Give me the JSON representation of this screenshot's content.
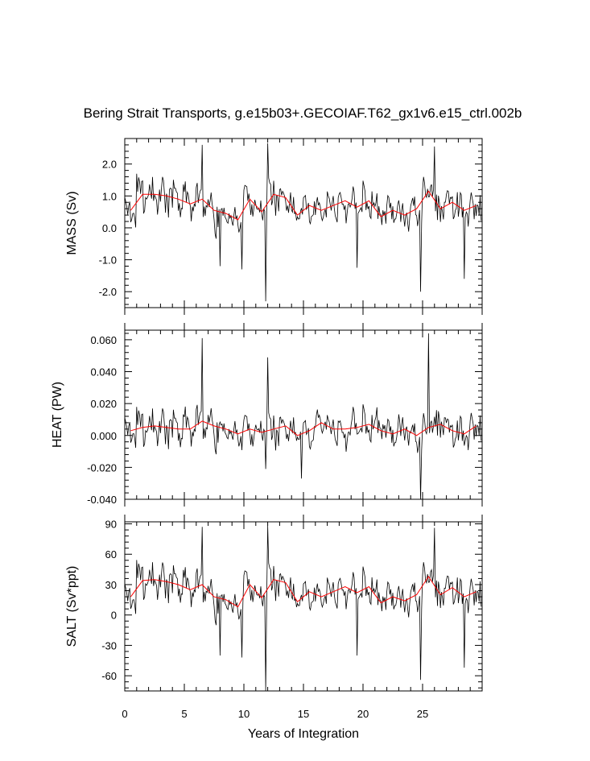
{
  "chart_data": {
    "type": "line",
    "title": "Bering Strait Transports, g.e15b03+.GECOIAF.T62_gx1v6.e15_ctrl.002b",
    "xlabel": "Years of Integration",
    "xlim": [
      0,
      30
    ],
    "x_ticks": [
      0,
      5,
      10,
      15,
      20,
      25
    ],
    "x_tick_labels": [
      "0",
      "5",
      "10",
      "15",
      "20",
      "25"
    ],
    "colors": {
      "monthly": "#000000",
      "annual": "#ff0000"
    },
    "panels": [
      {
        "id": "mass",
        "ylabel": "MASS (Sv)",
        "ylim": [
          -2.5,
          2.8
        ],
        "y_ticks": [
          2.0,
          1.0,
          0.0,
          -1.0,
          -2.0
        ],
        "y_tick_labels": [
          "2.0",
          "1.0",
          "0.0",
          "-1.0",
          "-2.0"
        ],
        "annual_mean": [
          0.55,
          1.05,
          1.05,
          1.0,
          0.9,
          0.75,
          0.9,
          0.55,
          0.45,
          0.25,
          0.9,
          0.5,
          1.05,
          0.95,
          0.4,
          0.7,
          0.55,
          0.7,
          0.85,
          0.65,
          0.85,
          0.35,
          0.55,
          0.4,
          0.6,
          1.15,
          0.6,
          0.8,
          0.55,
          0.7
        ],
        "spikes": [
          [
            6.5,
            2.6
          ],
          [
            12.0,
            2.65
          ],
          [
            26.0,
            2.55
          ],
          [
            11.8,
            -2.3
          ],
          [
            24.8,
            -2.0
          ],
          [
            28.5,
            -1.6
          ],
          [
            8.0,
            -1.2
          ],
          [
            9.8,
            -1.3
          ],
          [
            19.5,
            -1.25
          ]
        ]
      },
      {
        "id": "heat",
        "ylabel": "HEAT (PW)",
        "ylim": [
          -0.04,
          0.066
        ],
        "y_ticks": [
          0.06,
          0.04,
          0.02,
          0.0,
          -0.02,
          -0.04
        ],
        "y_tick_labels": [
          "0.060",
          "0.040",
          "0.020",
          "0.000",
          "-0.020",
          "-0.040"
        ],
        "annual_mean": [
          0.003,
          0.005,
          0.006,
          0.005,
          0.004,
          0.004,
          0.009,
          0.006,
          0.004,
          0.001,
          0.004,
          0.002,
          0.004,
          0.006,
          0.0,
          0.003,
          0.008,
          0.004,
          0.004,
          0.005,
          0.007,
          0.003,
          0.001,
          0.004,
          0.0,
          0.005,
          0.007,
          0.003,
          0.001,
          0.006
        ],
        "spikes": [
          [
            6.5,
            0.061
          ],
          [
            25.5,
            0.064
          ],
          [
            12.0,
            0.049
          ],
          [
            24.8,
            -0.04
          ],
          [
            14.8,
            -0.027
          ],
          [
            11.8,
            -0.021
          ]
        ]
      },
      {
        "id": "salt",
        "ylabel": "SALT (Sv*ppt)",
        "ylim": [
          -75,
          92
        ],
        "y_ticks": [
          90,
          60,
          30,
          0,
          -30,
          -60
        ],
        "y_tick_labels": [
          "90",
          "60",
          "30",
          "0",
          "-30",
          "-60"
        ],
        "annual_mean": [
          18,
          34,
          35,
          33,
          30,
          25,
          30,
          18,
          15,
          8,
          30,
          17,
          35,
          32,
          13,
          23,
          18,
          23,
          28,
          22,
          28,
          12,
          18,
          14,
          20,
          38,
          20,
          27,
          18,
          23
        ],
        "spikes": [
          [
            6.5,
            87
          ],
          [
            12.0,
            88
          ],
          [
            26.0,
            86
          ],
          [
            11.8,
            -75
          ],
          [
            24.8,
            -64
          ],
          [
            28.5,
            -52
          ],
          [
            8.0,
            -40
          ],
          [
            9.8,
            -42
          ],
          [
            19.5,
            -40
          ]
        ]
      }
    ]
  }
}
